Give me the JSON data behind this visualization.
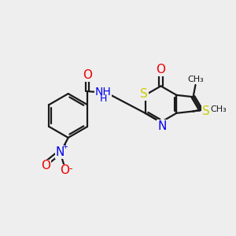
{
  "bg_color": "#eeeeee",
  "bond_color": "#1a1a1a",
  "bond_width": 1.6,
  "atom_colors": {
    "S": "#cccc00",
    "N": "#0000ee",
    "O": "#ee0000",
    "C": "#1a1a1a"
  },
  "font_size": 10,
  "fig_size": [
    3.0,
    3.0
  ],
  "dpi": 100,
  "xlim": [
    0,
    10
  ],
  "ylim": [
    0,
    10
  ]
}
